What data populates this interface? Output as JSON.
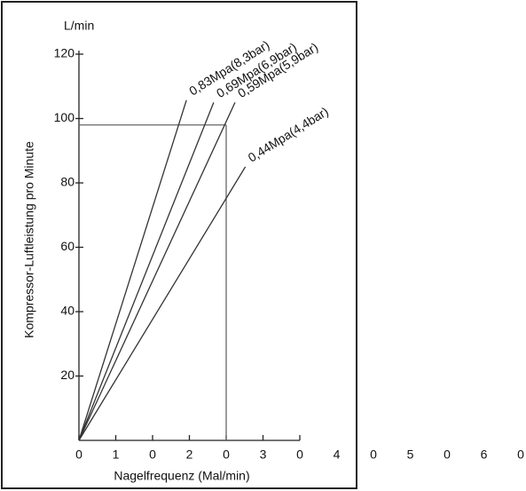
{
  "chart_data": {
    "type": "line",
    "ylabel": "Kompressor-Luftleistung pro Minute",
    "yunit": "L/min",
    "xlabel": "Nagelfrequenz (Mal/min)",
    "xlim": [
      0,
      30
    ],
    "ylim": [
      0,
      120
    ],
    "yticks": [
      20,
      40,
      60,
      80,
      100,
      120
    ],
    "xticks": [
      0,
      {
        "value": 5,
        "label": "1"
      },
      {
        "value": 10,
        "label": "0"
      },
      {
        "value": 15,
        "label": "2"
      },
      {
        "value": 20,
        "label": "0"
      },
      {
        "value": 25,
        "label": "3"
      },
      {
        "value": 30,
        "label": "0"
      },
      {
        "value": 35,
        "label": "4"
      },
      {
        "value": 40,
        "label": "0"
      },
      {
        "value": 45,
        "label": "5"
      },
      {
        "value": 50,
        "label": "0"
      },
      {
        "value": 55,
        "label": "6"
      },
      {
        "value": 60,
        "label": "0"
      }
    ],
    "series": [
      {
        "name": "0,83Mpa(8,3bar)",
        "color": "#333333",
        "x": [
          0,
          14.6
        ],
        "values": [
          0,
          105.7
        ]
      },
      {
        "name": "0,69Mpa(6,9bar)",
        "color": "#333333",
        "x": [
          0,
          18.3
        ],
        "values": [
          0,
          105
        ]
      },
      {
        "name": "0,59Mpa(5,9bar)",
        "color": "#333333",
        "x": [
          0,
          21.2
        ],
        "values": [
          0,
          105
        ]
      },
      {
        "name": "0,44Mpa(4,4bar)",
        "color": "#333333",
        "x": [
          0,
          22.6
        ],
        "values": [
          0,
          85
        ]
      }
    ],
    "reference": {
      "x": 20,
      "y": 98,
      "color": "#666666"
    }
  }
}
